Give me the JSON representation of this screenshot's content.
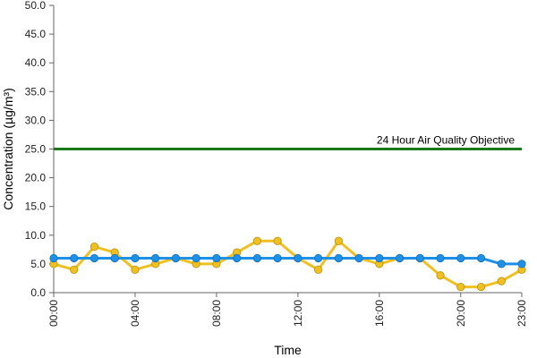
{
  "chart_data": {
    "type": "line",
    "xlabel": "Time",
    "ylabel": "Concentration (µg/m³)",
    "ylim": [
      0,
      50
    ],
    "yticks": [
      "0.0",
      "5.0",
      "10.0",
      "15.0",
      "20.0",
      "25.0",
      "30.0",
      "35.0",
      "40.0",
      "45.0",
      "50.0"
    ],
    "xlim": [
      0,
      23
    ],
    "xticks": [
      {
        "value": 0,
        "label": "00:00"
      },
      {
        "value": 4,
        "label": "04:00"
      },
      {
        "value": 8,
        "label": "08:00"
      },
      {
        "value": 12,
        "label": "12:00"
      },
      {
        "value": 16,
        "label": "16:00"
      },
      {
        "value": 20,
        "label": "20:00"
      },
      {
        "value": 23,
        "label": "23:00"
      }
    ],
    "x": [
      0,
      1,
      2,
      3,
      4,
      5,
      6,
      7,
      8,
      9,
      10,
      11,
      12,
      13,
      14,
      15,
      16,
      17,
      18,
      19,
      20,
      21,
      22,
      23
    ],
    "series": [
      {
        "color": "#f0c020",
        "values": [
          5,
          4,
          8,
          7,
          4,
          5,
          6,
          5,
          5,
          7,
          9,
          9,
          6,
          4,
          9,
          6,
          5,
          6,
          6,
          3,
          1,
          1,
          2,
          4
        ]
      },
      {
        "color": "#1e90e8",
        "values": [
          6,
          6,
          6,
          6,
          6,
          6,
          6,
          6,
          6,
          6,
          6,
          6,
          6,
          6,
          6,
          6,
          6,
          6,
          6,
          6,
          6,
          6,
          5,
          5
        ]
      }
    ],
    "reference_line": {
      "value": 25,
      "label": "24 Hour Air Quality Objective",
      "color": "#1a7a1a"
    },
    "grid": false
  }
}
